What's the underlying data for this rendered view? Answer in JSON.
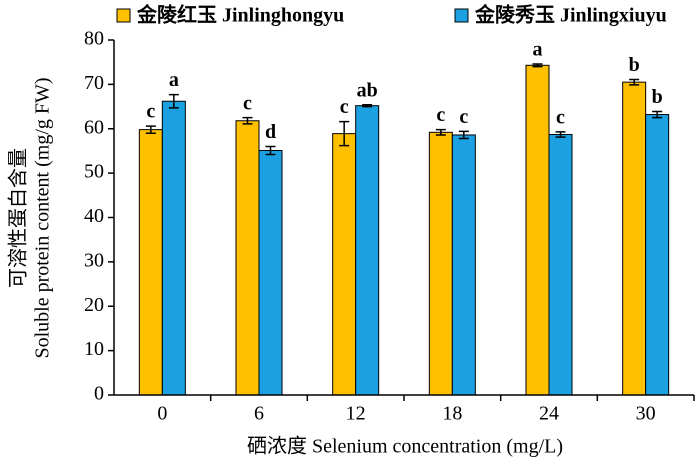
{
  "chart_data": {
    "type": "bar",
    "categories": [
      "0",
      "6",
      "12",
      "18",
      "24",
      "30"
    ],
    "x_label": "硒浓度 Selenium concentration (mg/L)",
    "y_label": [
      "可溶性蛋白含量",
      "Soluble protein content (mg/g FW)"
    ],
    "ylim": [
      0,
      80
    ],
    "yticks": [
      0,
      10,
      20,
      30,
      40,
      50,
      60,
      70,
      80
    ],
    "series": [
      {
        "name": "金陵红玉 Jinlinghongyu",
        "color": "#FFC000",
        "values": [
          59.8,
          61.8,
          58.9,
          59.2,
          74.3,
          70.5
        ],
        "errors": [
          0.8,
          0.7,
          2.7,
          0.6,
          0.3,
          0.6
        ],
        "letters": [
          "c",
          "c",
          "c",
          "c",
          "a",
          "b"
        ]
      },
      {
        "name": "金陵秀玉 Jinlingxiuyu",
        "color": "#1BA1E2",
        "values": [
          66.2,
          55.1,
          65.2,
          58.6,
          58.7,
          63.2
        ],
        "errors": [
          1.5,
          0.9,
          0.2,
          0.8,
          0.6,
          0.7
        ],
        "letters": [
          "a",
          "d",
          "ab",
          "c",
          "c",
          "b"
        ]
      }
    ]
  }
}
